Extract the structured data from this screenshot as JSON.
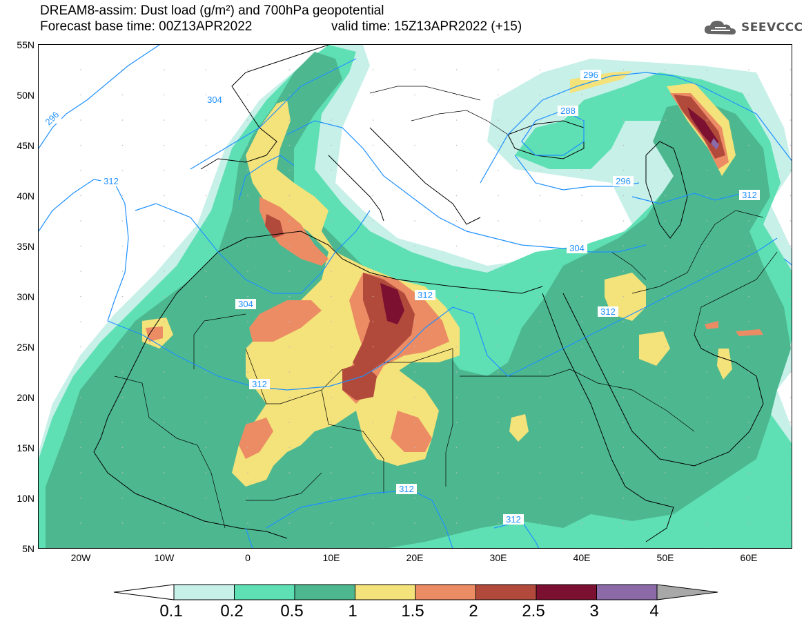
{
  "title": {
    "line1": "DREAM8-assim: Dust load (g/m²) and 700hPa geopotential",
    "line2": "Forecast base time: 00Z13APR2022",
    "valid_time": "valid time: 15Z13APR2022 (+15)"
  },
  "logo": {
    "text": "SEEVCCC",
    "icon": "cloud-icon"
  },
  "map": {
    "lat_labels": [
      "55N",
      "50N",
      "45N",
      "40N",
      "35N",
      "30N",
      "25N",
      "20N",
      "15N",
      "10N",
      "5N"
    ],
    "lon_labels": [
      "20W",
      "10W",
      "0",
      "10E",
      "20E",
      "30E",
      "40E",
      "50E",
      "60E"
    ],
    "contour_labels": [
      "296",
      "304",
      "312",
      "288",
      "296",
      "296",
      "304",
      "312",
      "312",
      "304",
      "312",
      "312",
      "312",
      "312"
    ],
    "dust_colors": {
      "0.1": "#c6f0e8",
      "0.2": "#5fe0b4",
      "0.5": "#4db890",
      "1": "#f4e27a",
      "1.5": "#ec8c64",
      "2": "#b24a3c",
      "2.5": "#7c1030",
      "3": "#8c6aa8"
    },
    "contour_color": "#1e90ff"
  },
  "colorbar": {
    "labels": [
      "0.1",
      "0.2",
      "0.5",
      "1",
      "1.5",
      "2",
      "2.5",
      "3",
      "4"
    ],
    "colors": [
      "#c6f0e8",
      "#5fe0b4",
      "#4db890",
      "#f4e27a",
      "#ec8c64",
      "#b24a3c",
      "#7c1030",
      "#8c6aa8"
    ],
    "under_color": "#ffffff",
    "over_color": "#a8a8a8"
  }
}
